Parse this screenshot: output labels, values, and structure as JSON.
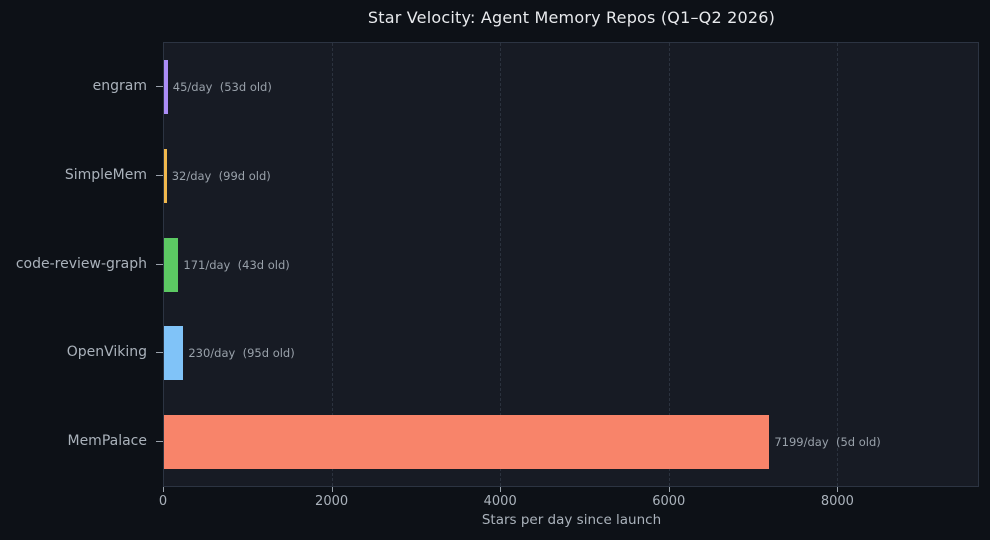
{
  "title": "Star Velocity: Agent Memory Repos (Q1–Q2 2026)",
  "colors": {
    "figure_bg": "#0d1117",
    "plot_bg": "#171b24",
    "plot_border": "#2c3442",
    "gridline": "#2b323e",
    "title_text": "#e8eaed",
    "axis_text": "#aab2bb",
    "annotation_text": "#99a1aa"
  },
  "chart_data": {
    "type": "bar",
    "orientation": "horizontal",
    "title": "Star Velocity: Agent Memory Repos (Q1–Q2 2026)",
    "xlabel": "Stars per day since launch",
    "ylabel": "",
    "categories_top_to_bottom": [
      "engram",
      "SimpleMem",
      "code-review-graph",
      "OpenViking",
      "MemPalace"
    ],
    "values": [
      45,
      32,
      171,
      230,
      7199
    ],
    "annotations": [
      "45/day  (53d old)",
      "32/day  (99d old)",
      "171/day  (43d old)",
      "230/day  (95d old)",
      "7199/day  (5d old)"
    ],
    "bar_colors": [
      "#ab8df6",
      "#f0b84d",
      "#5cc963",
      "#80c3f8",
      "#f8846a"
    ],
    "xticks": [
      0,
      2000,
      4000,
      6000,
      8000
    ],
    "xlim": [
      0,
      9680
    ],
    "grid": "vertical dashed at xticks",
    "legend": "none"
  }
}
